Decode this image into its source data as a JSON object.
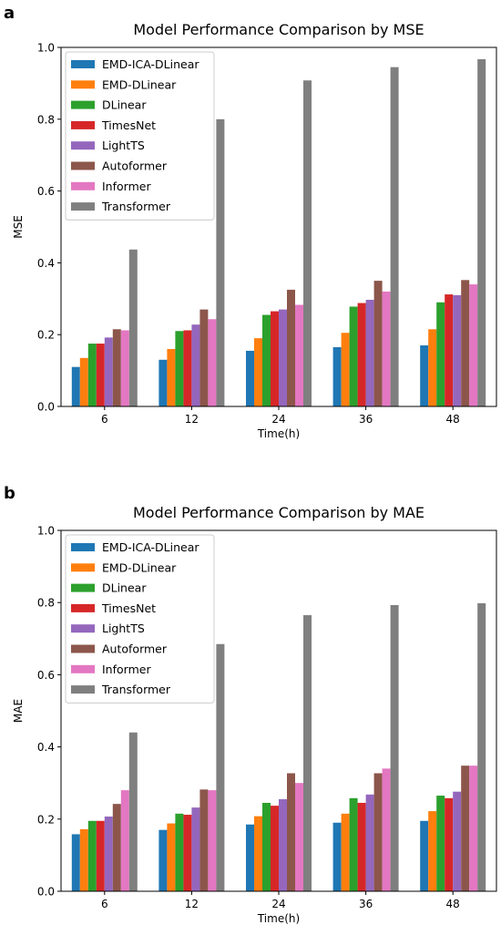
{
  "chart_data": [
    {
      "panel_label": "a",
      "type": "bar",
      "title": "Model Performance Comparison by MSE",
      "xlabel": "Time(h)",
      "ylabel": "MSE",
      "ylim": [
        0,
        1.0
      ],
      "yticks": [
        "0.0",
        "0.2",
        "0.4",
        "0.6",
        "0.8",
        "1.0"
      ],
      "categories": [
        "6",
        "12",
        "24",
        "36",
        "48"
      ],
      "legend_position": "upper-left",
      "grid": false,
      "series": [
        {
          "name": "EMD-ICA-DLinear",
          "color": "#1f77b4",
          "values": [
            0.11,
            0.13,
            0.155,
            0.165,
            0.17
          ]
        },
        {
          "name": "EMD-DLinear",
          "color": "#ff7f0e",
          "values": [
            0.135,
            0.16,
            0.19,
            0.205,
            0.215
          ]
        },
        {
          "name": "DLinear",
          "color": "#2ca02c",
          "values": [
            0.175,
            0.21,
            0.255,
            0.278,
            0.29
          ]
        },
        {
          "name": "TimesNet",
          "color": "#d62728",
          "values": [
            0.175,
            0.212,
            0.265,
            0.288,
            0.312
          ]
        },
        {
          "name": "LightTS",
          "color": "#9467bd",
          "values": [
            0.192,
            0.228,
            0.27,
            0.297,
            0.31
          ]
        },
        {
          "name": "Autoformer",
          "color": "#8c564b",
          "values": [
            0.215,
            0.27,
            0.325,
            0.35,
            0.352
          ]
        },
        {
          "name": "Informer",
          "color": "#e377c2",
          "values": [
            0.212,
            0.243,
            0.283,
            0.32,
            0.34
          ]
        },
        {
          "name": "Transformer",
          "color": "#7f7f7f",
          "values": [
            0.437,
            0.8,
            0.908,
            0.945,
            0.967
          ]
        }
      ]
    },
    {
      "panel_label": "b",
      "type": "bar",
      "title": "Model Performance Comparison by MAE",
      "xlabel": "Time(h)",
      "ylabel": "MAE",
      "ylim": [
        0,
        1.0
      ],
      "yticks": [
        "0.0",
        "0.2",
        "0.4",
        "0.6",
        "0.8",
        "1.0"
      ],
      "categories": [
        "6",
        "12",
        "24",
        "36",
        "48"
      ],
      "legend_position": "upper-left",
      "grid": false,
      "series": [
        {
          "name": "EMD-ICA-DLinear",
          "color": "#1f77b4",
          "values": [
            0.158,
            0.17,
            0.185,
            0.19,
            0.195
          ]
        },
        {
          "name": "EMD-DLinear",
          "color": "#ff7f0e",
          "values": [
            0.172,
            0.188,
            0.208,
            0.215,
            0.222
          ]
        },
        {
          "name": "DLinear",
          "color": "#2ca02c",
          "values": [
            0.195,
            0.215,
            0.245,
            0.258,
            0.265
          ]
        },
        {
          "name": "TimesNet",
          "color": "#d62728",
          "values": [
            0.195,
            0.212,
            0.237,
            0.245,
            0.258
          ]
        },
        {
          "name": "LightTS",
          "color": "#9467bd",
          "values": [
            0.207,
            0.232,
            0.255,
            0.268,
            0.276
          ]
        },
        {
          "name": "Autoformer",
          "color": "#8c564b",
          "values": [
            0.242,
            0.282,
            0.327,
            0.327,
            0.348
          ]
        },
        {
          "name": "Informer",
          "color": "#e377c2",
          "values": [
            0.28,
            0.28,
            0.3,
            0.34,
            0.348
          ]
        },
        {
          "name": "Transformer",
          "color": "#7f7f7f",
          "values": [
            0.44,
            0.685,
            0.765,
            0.793,
            0.798
          ]
        }
      ]
    }
  ]
}
